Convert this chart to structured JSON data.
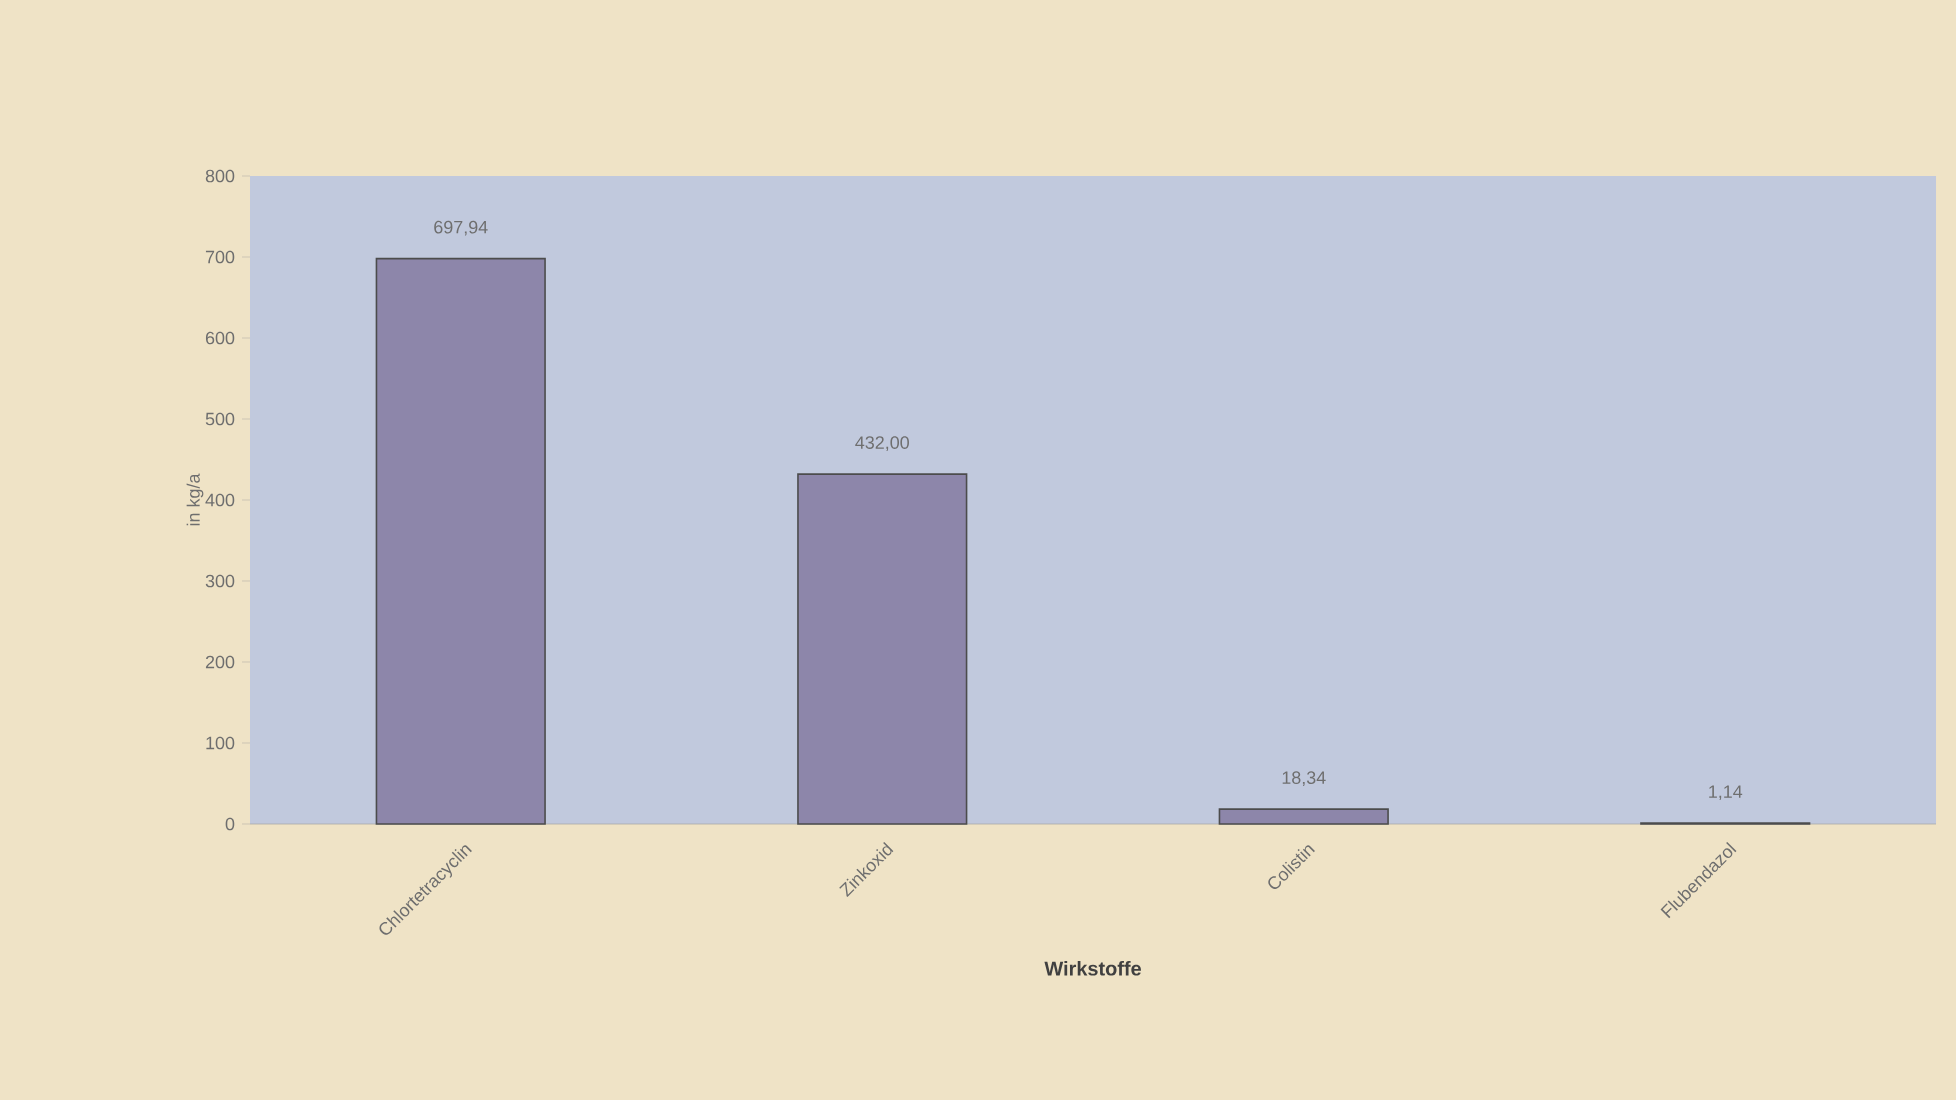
{
  "chart_data": {
    "type": "bar",
    "xlabel": "Wirkstoffe",
    "ylabel": "in kg/a",
    "categories": [
      "Chlortetracyclin",
      "Zinkoxid",
      "Colistin",
      "Flubendazol"
    ],
    "values": [
      697.94,
      432.0,
      18.34,
      1.14
    ],
    "value_labels": [
      "697,94",
      "432,00",
      "18,34",
      "1,14"
    ],
    "color": "#8d86aa",
    "ylim": [
      0,
      800
    ],
    "yticks": [
      0,
      100,
      200,
      300,
      400,
      500,
      600,
      700,
      800
    ]
  }
}
